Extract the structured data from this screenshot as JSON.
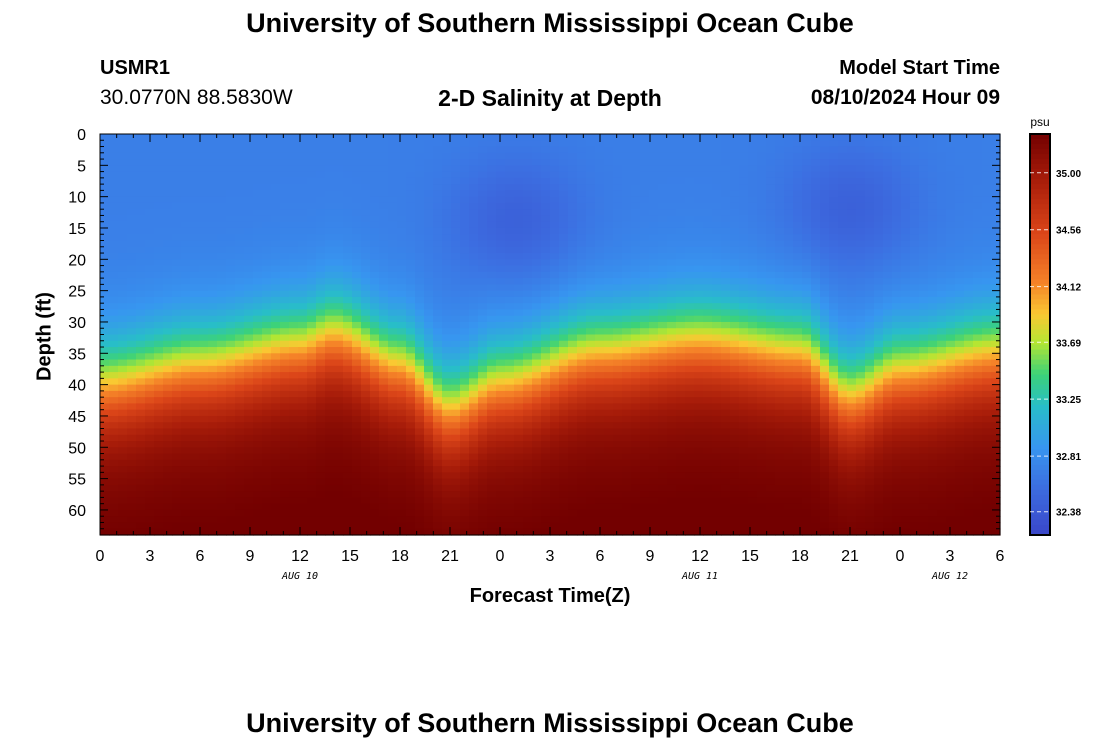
{
  "header": {
    "title": "University of Southern Mississippi Ocean Cube",
    "station_id": "USMR1",
    "coords": "30.0770N  88.5830W",
    "subtitle": "2-D Salinity at Depth",
    "model_start_label": "Model Start Time",
    "model_start_value": "08/10/2024 Hour 09"
  },
  "footer": {
    "title": "University of Southern Mississippi Ocean Cube"
  },
  "colors": {
    "low": "#3a4fcf",
    "mid": "#c6e83a",
    "high": "#7a0000"
  },
  "chart_data": {
    "type": "heatmap",
    "xlabel": "Forecast Time(Z)",
    "ylabel": "Depth (ft)",
    "x_hours": [
      0,
      3,
      6,
      9,
      12,
      15,
      18,
      21,
      24,
      27,
      30,
      33,
      36,
      39,
      42,
      45,
      48,
      51,
      54
    ],
    "x_tick_labels": [
      "0",
      "3",
      "6",
      "9",
      "12",
      "15",
      "18",
      "21",
      "0",
      "3",
      "6",
      "9",
      "12",
      "15",
      "18",
      "21",
      "0",
      "3",
      "6"
    ],
    "date_labels": [
      {
        "label": "AUG 10",
        "hour": 12
      },
      {
        "label": "AUG 11",
        "hour": 36
      },
      {
        "label": "AUG 12",
        "hour": 51
      }
    ],
    "y_ticks": [
      0,
      5,
      10,
      15,
      20,
      25,
      30,
      35,
      40,
      45,
      50,
      55,
      60
    ],
    "ylim": [
      0,
      64
    ],
    "xlim": [
      0,
      54
    ],
    "colorbar": {
      "unit": "psu",
      "ticks": [
        "32.38",
        "32.81",
        "33.25",
        "33.69",
        "34.12",
        "34.56",
        "35.00"
      ],
      "range": [
        32.2,
        35.3
      ]
    },
    "halocline_depth_by_hour": [
      {
        "hour": 0,
        "depth": 40
      },
      {
        "hour": 6,
        "depth": 37
      },
      {
        "hour": 12,
        "depth": 34
      },
      {
        "hour": 14,
        "depth": 32
      },
      {
        "hour": 18,
        "depth": 37
      },
      {
        "hour": 21,
        "depth": 44
      },
      {
        "hour": 24,
        "depth": 40
      },
      {
        "hour": 30,
        "depth": 35
      },
      {
        "hour": 36,
        "depth": 33
      },
      {
        "hour": 42,
        "depth": 35
      },
      {
        "hour": 45,
        "depth": 42
      },
      {
        "hour": 48,
        "depth": 38
      },
      {
        "hour": 54,
        "depth": 35
      }
    ],
    "surface_salinity_psu": 32.7,
    "bottom_salinity_psu": 35.2,
    "fresh_lens_centers": [
      {
        "hour": 25,
        "depth": 14,
        "salinity": 32.45
      },
      {
        "hour": 45,
        "depth": 12,
        "salinity": 32.45
      }
    ]
  }
}
